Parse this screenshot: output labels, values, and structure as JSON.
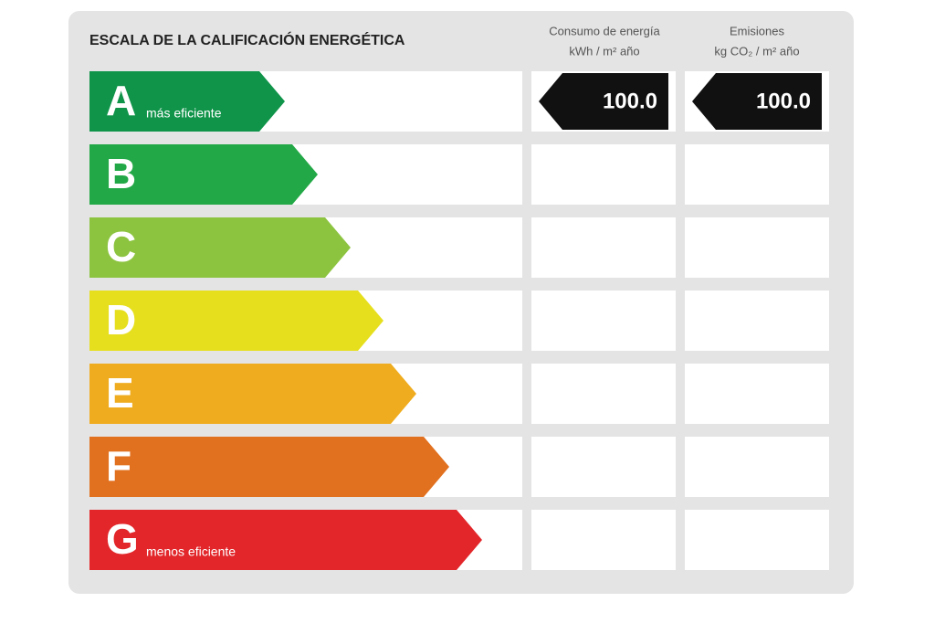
{
  "title": "ESCALA DE LA CALIFICACIÓN ENERGÉTICA",
  "columns": [
    {
      "line1": "Consumo de energía",
      "line2": "kWh / m² año"
    },
    {
      "line1": "Emisiones",
      "line2": "kg CO₂ / m² año"
    }
  ],
  "rows": [
    {
      "letter": "A",
      "note": "más eficiente",
      "color": "#10944a"
    },
    {
      "letter": "B",
      "color": "#22a846"
    },
    {
      "letter": "C",
      "color": "#8cc440"
    },
    {
      "letter": "D",
      "color": "#e6df1e"
    },
    {
      "letter": "E",
      "color": "#efac1e"
    },
    {
      "letter": "F",
      "color": "#e1701f"
    },
    {
      "letter": "G",
      "note": "menos eficiente",
      "color": "#e2262a"
    }
  ],
  "rating": {
    "row": 0,
    "values": [
      "100.0",
      "100.0"
    ]
  }
}
